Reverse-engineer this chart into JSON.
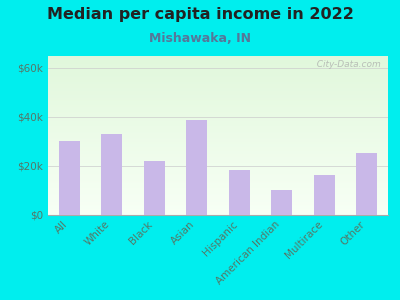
{
  "title": "Median per capita income in 2022",
  "subtitle": "Mishawaka, IN",
  "categories": [
    "All",
    "White",
    "Black",
    "Asian",
    "Hispanic",
    "American Indian",
    "Multirace",
    "Other"
  ],
  "values": [
    30000,
    33000,
    22000,
    38500,
    18000,
    10000,
    16000,
    25000
  ],
  "bar_color": "#c9b8e8",
  "background_outer": "#00EEEE",
  "title_color": "#222222",
  "subtitle_color": "#557799",
  "tick_color": "#557766",
  "ylabel_ticks": [
    "$0",
    "$20k",
    "$40k",
    "$60k"
  ],
  "ylabel_values": [
    0,
    20000,
    40000,
    60000
  ],
  "ylim": [
    0,
    65000
  ],
  "title_fontsize": 11.5,
  "subtitle_fontsize": 9,
  "tick_fontsize": 7.5,
  "watermark": "  City-Data.com"
}
